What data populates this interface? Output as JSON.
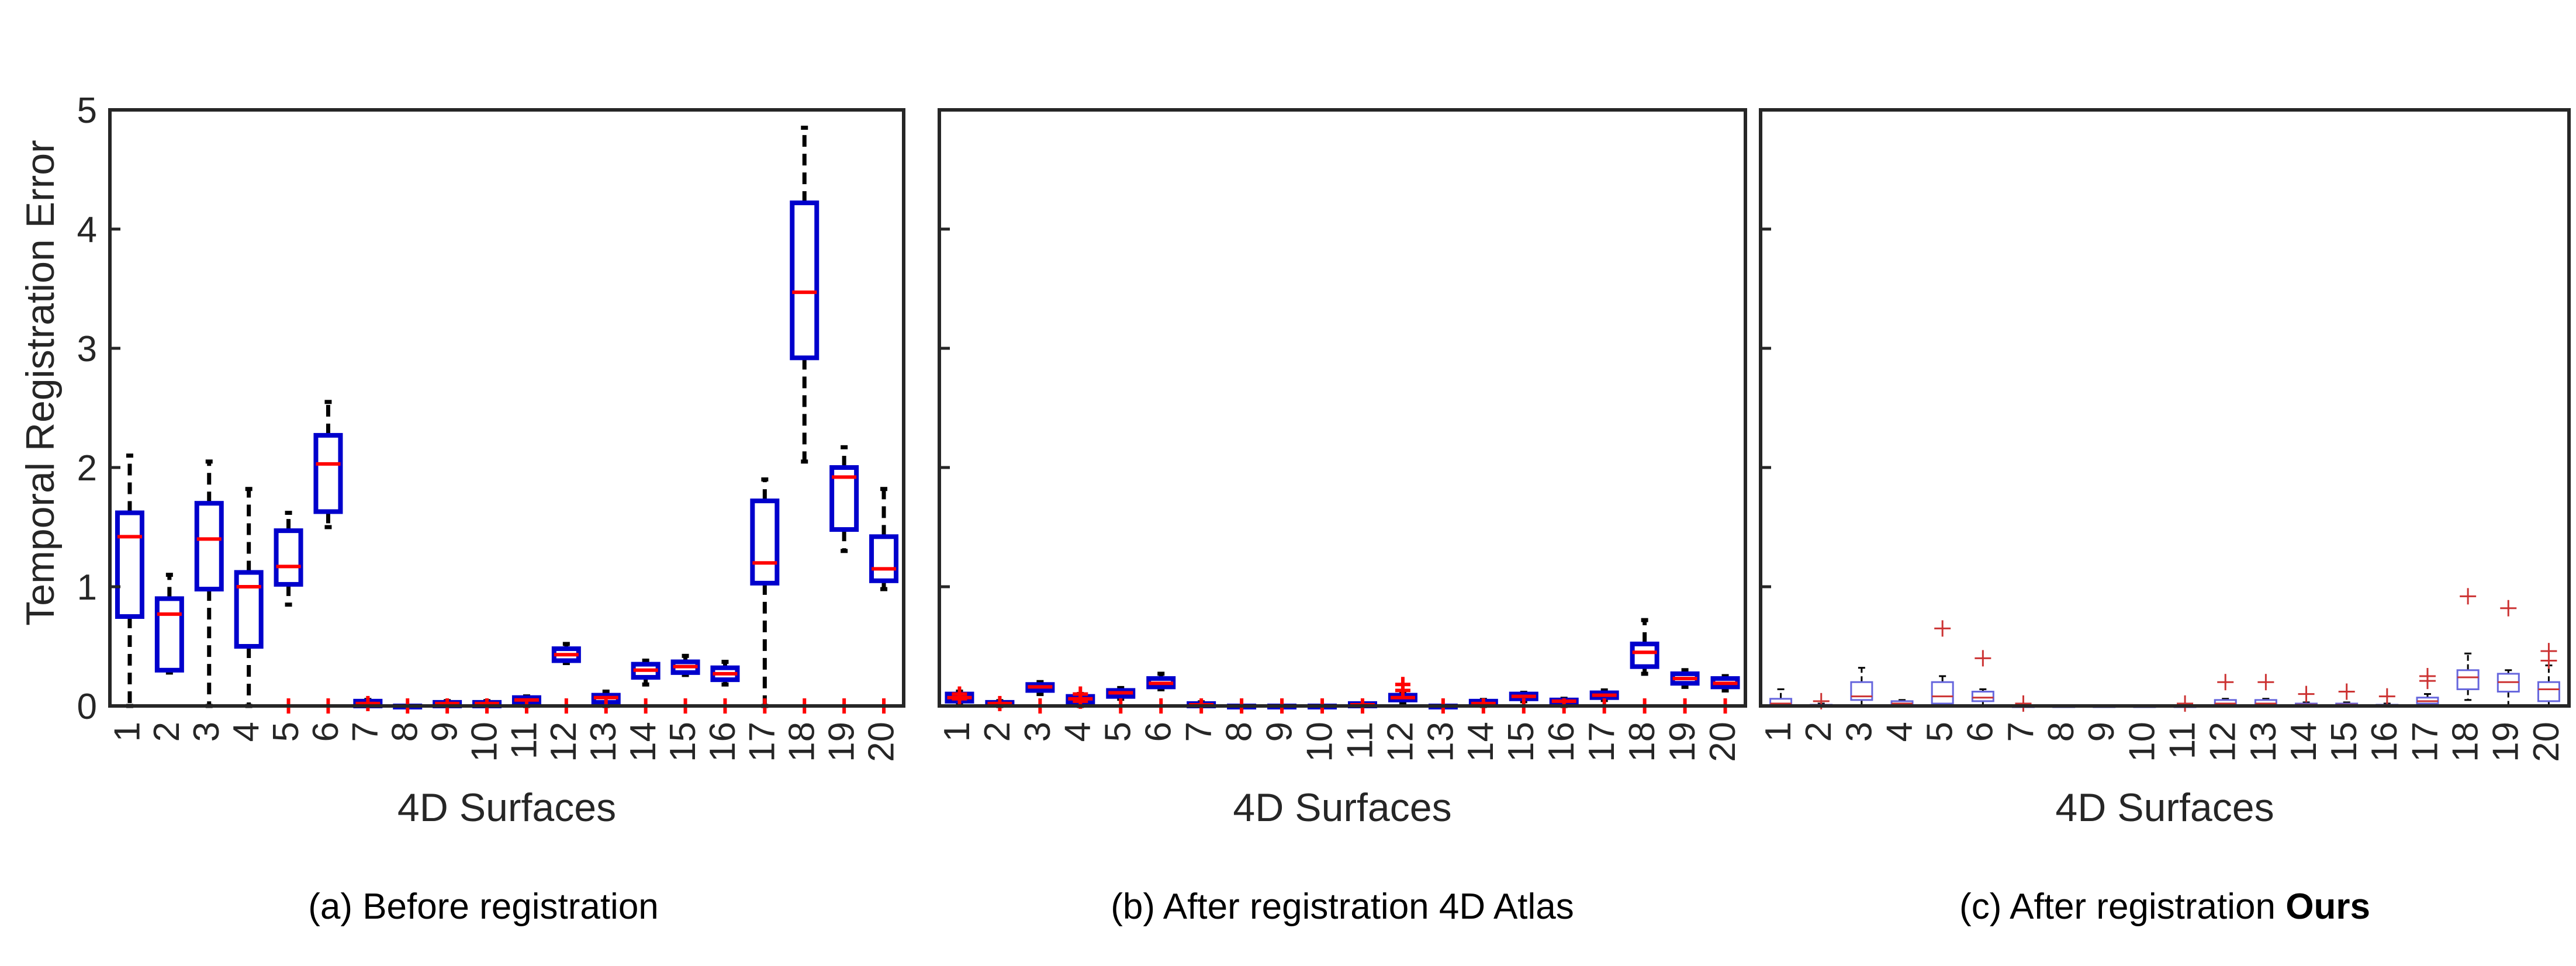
{
  "figure": {
    "ylabel": "Temporal Registration Error",
    "xlabel": "4D Surfaces"
  },
  "chart_data": [
    {
      "type": "box",
      "style": "bold",
      "caption": "(a) Before registration",
      "caption_bold": "",
      "xlabel": "4D Surfaces",
      "ylabel": "Temporal Registration Error",
      "ylim": [
        0,
        5
      ],
      "yticks": [
        0,
        1,
        2,
        3,
        4,
        5
      ],
      "categories": [
        "1",
        "2",
        "3",
        "4",
        "5",
        "6",
        "7",
        "8",
        "9",
        "10",
        "11",
        "12",
        "13",
        "14",
        "15",
        "16",
        "17",
        "18",
        "19",
        "20"
      ],
      "box_color": "#0000CC",
      "median_color": "#FF0000",
      "boxes": [
        {
          "min": 0.0,
          "q1": 0.75,
          "median": 1.42,
          "q3": 1.62,
          "max": 2.1,
          "outliers": []
        },
        {
          "min": 0.28,
          "q1": 0.3,
          "median": 0.77,
          "q3": 0.9,
          "max": 1.1,
          "outliers": []
        },
        {
          "min": 0.0,
          "q1": 0.98,
          "median": 1.4,
          "q3": 1.7,
          "max": 2.05,
          "outliers": []
        },
        {
          "min": 0.0,
          "q1": 0.5,
          "median": 1.0,
          "q3": 1.12,
          "max": 1.82,
          "outliers": []
        },
        {
          "min": 0.85,
          "q1": 1.02,
          "median": 1.17,
          "q3": 1.47,
          "max": 1.62,
          "outliers": [
            0
          ]
        },
        {
          "min": 1.5,
          "q1": 1.63,
          "median": 2.03,
          "q3": 2.27,
          "max": 2.55,
          "outliers": [
            0
          ]
        },
        {
          "min": 0.0,
          "q1": 0.0,
          "median": 0.02,
          "q3": 0.04,
          "max": 0.05,
          "outliers": [
            0.02
          ]
        },
        {
          "min": 0.0,
          "q1": 0.0,
          "median": 0.0,
          "q3": 0.0,
          "max": 0.0,
          "outliers": [
            0
          ]
        },
        {
          "min": 0.0,
          "q1": 0.0,
          "median": 0.02,
          "q3": 0.03,
          "max": 0.04,
          "outliers": [
            0
          ]
        },
        {
          "min": 0.0,
          "q1": 0.0,
          "median": 0.02,
          "q3": 0.03,
          "max": 0.04,
          "outliers": [
            0
          ]
        },
        {
          "min": 0.0,
          "q1": 0.03,
          "median": 0.05,
          "q3": 0.07,
          "max": 0.08,
          "outliers": [
            0
          ]
        },
        {
          "min": 0.36,
          "q1": 0.38,
          "median": 0.43,
          "q3": 0.48,
          "max": 0.52,
          "outliers": [
            0
          ]
        },
        {
          "min": 0.0,
          "q1": 0.03,
          "median": 0.07,
          "q3": 0.09,
          "max": 0.12,
          "outliers": [
            0
          ]
        },
        {
          "min": 0.18,
          "q1": 0.24,
          "median": 0.3,
          "q3": 0.35,
          "max": 0.38,
          "outliers": [
            0
          ]
        },
        {
          "min": 0.26,
          "q1": 0.28,
          "median": 0.33,
          "q3": 0.37,
          "max": 0.42,
          "outliers": [
            0
          ]
        },
        {
          "min": 0.18,
          "q1": 0.22,
          "median": 0.27,
          "q3": 0.32,
          "max": 0.37,
          "outliers": [
            0
          ]
        },
        {
          "min": 0.0,
          "q1": 1.03,
          "median": 1.2,
          "q3": 1.72,
          "max": 1.9,
          "outliers": [
            0
          ]
        },
        {
          "min": 2.05,
          "q1": 2.92,
          "median": 3.47,
          "q3": 4.22,
          "max": 4.85,
          "outliers": [
            0
          ]
        },
        {
          "min": 1.3,
          "q1": 1.48,
          "median": 1.92,
          "q3": 2.0,
          "max": 2.17,
          "outliers": [
            0
          ]
        },
        {
          "min": 0.98,
          "q1": 1.05,
          "median": 1.15,
          "q3": 1.42,
          "max": 1.82,
          "outliers": [
            0
          ]
        }
      ]
    },
    {
      "type": "box",
      "style": "bold",
      "caption": "(b) After registration 4D Atlas",
      "caption_bold": "",
      "xlabel": "4D Surfaces",
      "ylim": [
        0,
        5
      ],
      "categories": [
        "1",
        "2",
        "3",
        "4",
        "5",
        "6",
        "7",
        "8",
        "9",
        "10",
        "11",
        "12",
        "13",
        "14",
        "15",
        "16",
        "17",
        "18",
        "19",
        "20"
      ],
      "box_color": "#0000CC",
      "median_color": "#FF0000",
      "boxes": [
        {
          "min": 0.02,
          "q1": 0.04,
          "median": 0.07,
          "q3": 0.1,
          "max": 0.12,
          "outliers": [
            0.1,
            0.06
          ]
        },
        {
          "min": 0.0,
          "q1": 0.01,
          "median": 0.02,
          "q3": 0.03,
          "max": 0.04,
          "outliers": [
            0.02
          ]
        },
        {
          "min": 0.1,
          "q1": 0.13,
          "median": 0.16,
          "q3": 0.18,
          "max": 0.2,
          "outliers": [
            0
          ]
        },
        {
          "min": 0.0,
          "q1": 0.03,
          "median": 0.06,
          "q3": 0.08,
          "max": 0.1,
          "outliers": [
            0.1,
            0.04
          ]
        },
        {
          "min": 0.06,
          "q1": 0.08,
          "median": 0.11,
          "q3": 0.13,
          "max": 0.15,
          "outliers": [
            0
          ]
        },
        {
          "min": 0.14,
          "q1": 0.16,
          "median": 0.19,
          "q3": 0.23,
          "max": 0.27,
          "outliers": [
            0
          ]
        },
        {
          "min": 0.0,
          "q1": 0.0,
          "median": 0.01,
          "q3": 0.02,
          "max": 0.03,
          "outliers": [
            0
          ]
        },
        {
          "min": 0.0,
          "q1": 0.0,
          "median": 0.0,
          "q3": 0.0,
          "max": 0.0,
          "outliers": [
            0
          ]
        },
        {
          "min": 0.0,
          "q1": 0.0,
          "median": 0.0,
          "q3": 0.0,
          "max": 0.0,
          "outliers": [
            0
          ]
        },
        {
          "min": 0.0,
          "q1": 0.0,
          "median": 0.0,
          "q3": 0.0,
          "max": 0.0,
          "outliers": [
            0
          ]
        },
        {
          "min": 0.0,
          "q1": 0.0,
          "median": 0.01,
          "q3": 0.02,
          "max": 0.02,
          "outliers": [
            0
          ]
        },
        {
          "min": 0.03,
          "q1": 0.05,
          "median": 0.07,
          "q3": 0.09,
          "max": 0.11,
          "outliers": [
            0.18,
            0.13
          ]
        },
        {
          "min": 0.0,
          "q1": 0.0,
          "median": 0.0,
          "q3": 0.0,
          "max": 0.0,
          "outliers": [
            0
          ]
        },
        {
          "min": 0.0,
          "q1": 0.01,
          "median": 0.02,
          "q3": 0.04,
          "max": 0.05,
          "outliers": [
            0
          ]
        },
        {
          "min": 0.04,
          "q1": 0.06,
          "median": 0.08,
          "q3": 0.1,
          "max": 0.11,
          "outliers": [
            0
          ]
        },
        {
          "min": 0.0,
          "q1": 0.02,
          "median": 0.04,
          "q3": 0.05,
          "max": 0.06,
          "outliers": [
            0
          ]
        },
        {
          "min": 0.05,
          "q1": 0.07,
          "median": 0.09,
          "q3": 0.11,
          "max": 0.13,
          "outliers": [
            0
          ]
        },
        {
          "min": 0.27,
          "q1": 0.33,
          "median": 0.45,
          "q3": 0.52,
          "max": 0.72,
          "outliers": [
            0
          ]
        },
        {
          "min": 0.16,
          "q1": 0.19,
          "median": 0.23,
          "q3": 0.27,
          "max": 0.3,
          "outliers": [
            0
          ]
        },
        {
          "min": 0.13,
          "q1": 0.16,
          "median": 0.19,
          "q3": 0.23,
          "max": 0.25,
          "outliers": [
            0
          ]
        }
      ]
    },
    {
      "type": "box",
      "style": "thin",
      "caption": "(c) After registration ",
      "caption_bold": "Ours",
      "xlabel": "4D Surfaces",
      "ylim": [
        0,
        5
      ],
      "categories": [
        "1",
        "2",
        "3",
        "4",
        "5",
        "6",
        "7",
        "8",
        "9",
        "10",
        "11",
        "12",
        "13",
        "14",
        "15",
        "16",
        "17",
        "18",
        "19",
        "20"
      ],
      "box_color": "#6666DD",
      "median_color": "#CC3333",
      "boxes": [
        {
          "min": 0.0,
          "q1": 0.0,
          "median": 0.02,
          "q3": 0.06,
          "max": 0.14,
          "outliers": []
        },
        {
          "min": 0.0,
          "q1": 0.0,
          "median": 0.0,
          "q3": 0.01,
          "max": 0.02,
          "outliers": [
            0.04
          ]
        },
        {
          "min": 0.0,
          "q1": 0.05,
          "median": 0.08,
          "q3": 0.2,
          "max": 0.32,
          "outliers": []
        },
        {
          "min": 0.0,
          "q1": 0.0,
          "median": 0.02,
          "q3": 0.04,
          "max": 0.05,
          "outliers": []
        },
        {
          "min": 0.0,
          "q1": 0.02,
          "median": 0.08,
          "q3": 0.2,
          "max": 0.25,
          "outliers": [
            0.65
          ]
        },
        {
          "min": 0.0,
          "q1": 0.04,
          "median": 0.07,
          "q3": 0.12,
          "max": 0.14,
          "outliers": [
            0.4
          ]
        },
        {
          "min": 0.0,
          "q1": 0.0,
          "median": 0.0,
          "q3": 0.0,
          "max": 0.0,
          "outliers": [
            0.02
          ]
        },
        {
          "min": 0.0,
          "q1": 0.0,
          "median": 0.0,
          "q3": 0.0,
          "max": 0.0,
          "outliers": []
        },
        {
          "min": 0.0,
          "q1": 0.0,
          "median": 0.0,
          "q3": 0.0,
          "max": 0.0,
          "outliers": []
        },
        {
          "min": 0.0,
          "q1": 0.0,
          "median": 0.0,
          "q3": 0.0,
          "max": 0.0,
          "outliers": []
        },
        {
          "min": 0.0,
          "q1": 0.0,
          "median": 0.0,
          "q3": 0.0,
          "max": 0.0,
          "outliers": [
            0.02
          ]
        },
        {
          "min": 0.0,
          "q1": 0.0,
          "median": 0.02,
          "q3": 0.05,
          "max": 0.06,
          "outliers": [
            0.2
          ]
        },
        {
          "min": 0.0,
          "q1": 0.0,
          "median": 0.02,
          "q3": 0.05,
          "max": 0.06,
          "outliers": [
            0.2
          ]
        },
        {
          "min": 0.0,
          "q1": 0.0,
          "median": 0.01,
          "q3": 0.02,
          "max": 0.03,
          "outliers": [
            0.1
          ]
        },
        {
          "min": 0.0,
          "q1": 0.0,
          "median": 0.01,
          "q3": 0.02,
          "max": 0.03,
          "outliers": [
            0.12
          ]
        },
        {
          "min": 0.0,
          "q1": 0.0,
          "median": 0.0,
          "q3": 0.01,
          "max": 0.02,
          "outliers": [
            0.08
          ]
        },
        {
          "min": 0.0,
          "q1": 0.02,
          "median": 0.04,
          "q3": 0.07,
          "max": 0.1,
          "outliers": [
            0.25,
            0.21
          ]
        },
        {
          "min": 0.05,
          "q1": 0.14,
          "median": 0.24,
          "q3": 0.3,
          "max": 0.44,
          "outliers": [
            0.92
          ]
        },
        {
          "min": 0.0,
          "q1": 0.12,
          "median": 0.2,
          "q3": 0.27,
          "max": 0.3,
          "outliers": [
            0.82
          ]
        },
        {
          "min": 0.0,
          "q1": 0.04,
          "median": 0.14,
          "q3": 0.2,
          "max": 0.34,
          "outliers": [
            0.46,
            0.38
          ]
        }
      ]
    }
  ]
}
